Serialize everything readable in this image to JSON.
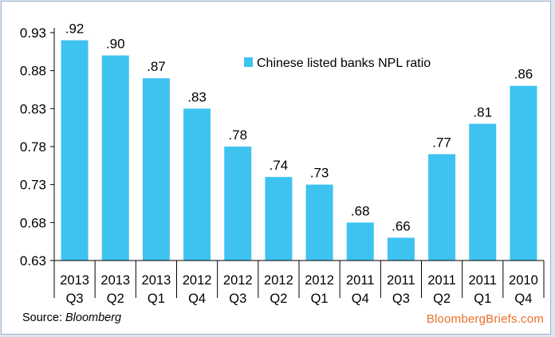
{
  "colors": {
    "bar": "#3ec3f0",
    "brand": "#e8702a"
  },
  "source": {
    "prefix": "Source: ",
    "name": "Bloomberg"
  },
  "brand": "BloombergBriefs.com",
  "chart_data": {
    "type": "bar",
    "title": "",
    "xlabel": "",
    "ylabel": "",
    "legend": {
      "entries": [
        "Chinese listed banks NPL ratio"
      ],
      "placement": "top-center"
    },
    "grid": false,
    "ylim": [
      0.63,
      0.93
    ],
    "yticks": [
      0.63,
      0.68,
      0.73,
      0.78,
      0.83,
      0.88,
      0.93
    ],
    "ytick_labels": [
      "0.63",
      "0.68",
      "0.73",
      "0.78",
      "0.83",
      "0.88",
      "0.93"
    ],
    "categories": [
      [
        "2013",
        "Q3"
      ],
      [
        "2013",
        "Q2"
      ],
      [
        "2013",
        "Q1"
      ],
      [
        "2012",
        "Q4"
      ],
      [
        "2012",
        "Q3"
      ],
      [
        "2012",
        "Q2"
      ],
      [
        "2012",
        "Q1"
      ],
      [
        "2011",
        "Q4"
      ],
      [
        "2011",
        "Q3"
      ],
      [
        "2011",
        "Q2"
      ],
      [
        "2011",
        "Q1"
      ],
      [
        "2010",
        "Q4"
      ]
    ],
    "values": [
      0.92,
      0.9,
      0.87,
      0.83,
      0.78,
      0.74,
      0.73,
      0.68,
      0.66,
      0.77,
      0.81,
      0.86
    ],
    "data_labels": [
      ".92",
      ".90",
      ".87",
      ".83",
      ".78",
      ".74",
      ".73",
      ".68",
      ".66",
      ".77",
      ".81",
      ".86"
    ]
  }
}
